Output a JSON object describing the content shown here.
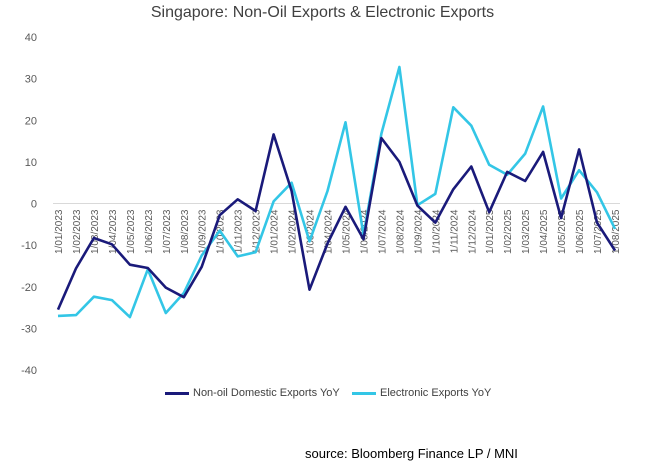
{
  "chart_data": {
    "type": "line",
    "title": "Singapore:  Non-Oil Exports & Electronic Exports",
    "xlabel": "",
    "ylabel": "",
    "ylim": [
      -40,
      40
    ],
    "yticks": [
      40,
      30,
      20,
      10,
      0,
      -10,
      -20,
      -30,
      -40
    ],
    "grid": false,
    "legend_position": "bottom",
    "x": [
      "1/01/2023",
      "1/02/2023",
      "1/03/2023",
      "1/04/2023",
      "1/05/2023",
      "1/06/2023",
      "1/07/2023",
      "1/08/2023",
      "1/09/2023",
      "1/10/2023",
      "1/11/2023",
      "1/12/2023",
      "1/01/2024",
      "1/02/2024",
      "1/03/2024",
      "1/04/2024",
      "1/05/2024",
      "1/06/2024",
      "1/07/2024",
      "1/08/2024",
      "1/09/2024",
      "1/10/2024",
      "1/11/2024",
      "1/12/2024",
      "1/01/2025",
      "1/02/2025",
      "1/03/2025",
      "1/04/2025",
      "1/05/2025",
      "1/06/2025",
      "1/07/2025",
      "1/08/2025"
    ],
    "series": [
      {
        "name": "Non-oil Domestic Exports YoY",
        "color": "#1a1a7a",
        "values": [
          -25.5,
          -15.6,
          -8.3,
          -9.8,
          -14.7,
          -15.5,
          -20.2,
          -22.5,
          -15.2,
          -2.8,
          1.0,
          -1.8,
          16.6,
          3.0,
          -20.7,
          -9.6,
          -0.8,
          -8.6,
          15.7,
          10.0,
          -0.5,
          -4.6,
          3.4,
          8.9,
          -2.1,
          7.6,
          5.4,
          12.4,
          -3.5,
          13.0,
          -4.6,
          -11.3
        ]
      },
      {
        "name": "Electronic Exports YoY",
        "color": "#33c6e6",
        "values": [
          -27.0,
          -26.8,
          -22.4,
          -23.2,
          -27.3,
          -15.8,
          -26.3,
          -21.5,
          -12.5,
          -6.5,
          -12.7,
          -11.7,
          0.5,
          5.0,
          -9.1,
          3.0,
          19.5,
          -7.6,
          16.8,
          32.8,
          -0.4,
          2.3,
          23.1,
          18.7,
          9.3,
          6.9,
          12.0,
          23.3,
          1.2,
          8.0,
          2.7,
          -6.1
        ]
      }
    ]
  },
  "source_note": "source: Bloomberg Finance LP /  MNI"
}
